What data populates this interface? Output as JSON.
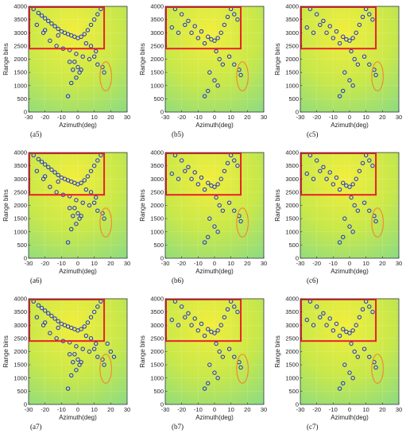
{
  "figure": {
    "panel_labels": [
      [
        "(a5)",
        "(b5)",
        "(c5)"
      ],
      [
        "(a6)",
        "(b6)",
        "(c6)"
      ],
      [
        "(a7)",
        "(b7)",
        "(c7)"
      ]
    ]
  },
  "colors": {
    "background_field": "#c8e84a",
    "background_hot": "#f2ee3c",
    "background_cool": "#8fdc80",
    "marker": "#1a2ed6",
    "roi_box": "#e8202a",
    "ellipse": "#f08a30"
  },
  "chart_data": [
    {
      "type": "scatter",
      "panel": "a5",
      "xlabel": "Azimuth(deg)",
      "ylabel": "Range bins",
      "xlim": [
        -30,
        30
      ],
      "ylim": [
        0,
        4000
      ],
      "xticks": [
        -30,
        -20,
        -10,
        0,
        10,
        20,
        30
      ],
      "yticks": [
        0,
        500,
        1000,
        1500,
        2000,
        2500,
        3000,
        3500,
        4000
      ],
      "roi_box": {
        "x": [
          -30,
          16
        ],
        "y": [
          2400,
          4200
        ]
      },
      "ellipse": {
        "cx": 17,
        "cy": 1350,
        "rx": 3.5,
        "ry": 550
      },
      "points": {
        "x": [
          -27,
          -24,
          -22,
          -20,
          -18,
          -16,
          -14,
          -12,
          -10,
          -8,
          -6,
          -4,
          -2,
          0,
          2,
          4,
          6,
          8,
          10,
          12,
          14,
          -25,
          -21,
          -17,
          -13,
          -9,
          -5,
          -1,
          3,
          7,
          11,
          -2,
          0,
          1,
          -1,
          2,
          -4,
          -6,
          10,
          12,
          15,
          16,
          -5,
          -3,
          5,
          8,
          -20,
          -12
        ],
        "y": [
          3900,
          3750,
          3650,
          3550,
          3450,
          3350,
          3250,
          3150,
          3050,
          3000,
          2950,
          2900,
          2850,
          2800,
          2850,
          2950,
          3100,
          3300,
          3500,
          3700,
          3900,
          3300,
          3000,
          2700,
          2500,
          2400,
          2350,
          2200,
          2100,
          2000,
          2300,
          1900,
          1700,
          1500,
          1300,
          1600,
          1100,
          600,
          2100,
          1800,
          1700,
          1500,
          1900,
          1600,
          2600,
          2500,
          3100,
          2900
        ]
      }
    },
    {
      "type": "scatter",
      "panel": "b5",
      "xlabel": "Azimuth(deg)",
      "ylabel": "Range bins",
      "xlim": [
        -30,
        30
      ],
      "ylim": [
        0,
        4000
      ],
      "xticks": [
        -30,
        -20,
        -10,
        0,
        10,
        20,
        30
      ],
      "yticks": [
        0,
        500,
        1000,
        1500,
        2000,
        2500,
        3000,
        3500,
        4000
      ],
      "roi_box": {
        "x": [
          -30,
          16
        ],
        "y": [
          2400,
          4200
        ]
      },
      "ellipse": {
        "cx": 17,
        "cy": 1350,
        "rx": 3.5,
        "ry": 550
      },
      "points": {
        "x": [
          -24,
          -20,
          -16,
          -12,
          -8,
          -4,
          -2,
          0,
          2,
          4,
          6,
          8,
          10,
          12,
          14,
          -18,
          -14,
          -10,
          -6,
          1,
          3,
          5,
          -3,
          0,
          2,
          -4,
          -6,
          9,
          12,
          15,
          16,
          -22,
          -26
        ],
        "y": [
          3900,
          3700,
          3450,
          3250,
          3050,
          2850,
          2750,
          2700,
          2800,
          3000,
          3300,
          3600,
          3900,
          3700,
          3500,
          3300,
          3000,
          2800,
          2600,
          2300,
          2000,
          1800,
          1500,
          1200,
          1000,
          800,
          600,
          2100,
          1800,
          1600,
          1400,
          3000,
          3200
        ]
      }
    },
    {
      "type": "scatter",
      "panel": "c5",
      "xlabel": "Azimuth(deg)",
      "ylabel": "Range bins",
      "xlim": [
        -30,
        30
      ],
      "ylim": [
        0,
        4000
      ],
      "xticks": [
        -30,
        -20,
        -10,
        0,
        10,
        20,
        30
      ],
      "yticks": [
        0,
        500,
        1000,
        1500,
        2000,
        2500,
        3000,
        3500,
        4000
      ],
      "roi_box": {
        "x": [
          -30,
          16
        ],
        "y": [
          2400,
          4200
        ]
      },
      "ellipse": {
        "cx": 17,
        "cy": 1350,
        "rx": 3.5,
        "ry": 550
      },
      "points": {
        "x": [
          -24,
          -20,
          -16,
          -12,
          -8,
          -4,
          -2,
          0,
          2,
          4,
          6,
          8,
          10,
          12,
          14,
          -18,
          -14,
          -10,
          -6,
          1,
          3,
          5,
          -3,
          0,
          2,
          -4,
          -6,
          9,
          12,
          15,
          16,
          -22,
          -26
        ],
        "y": [
          3900,
          3700,
          3450,
          3250,
          3050,
          2850,
          2750,
          2700,
          2800,
          3000,
          3300,
          3600,
          3900,
          3700,
          3500,
          3300,
          3000,
          2800,
          2600,
          2300,
          2000,
          1800,
          1500,
          1200,
          1000,
          800,
          600,
          2100,
          1800,
          1600,
          1400,
          3000,
          3200
        ]
      }
    },
    {
      "type": "scatter",
      "panel": "a6",
      "xlabel": "Azimuth(deg)",
      "ylabel": "Range bins",
      "xlim": [
        -30,
        30
      ],
      "ylim": [
        0,
        4000
      ],
      "xticks": [
        -30,
        -20,
        -10,
        0,
        10,
        20,
        30
      ],
      "yticks": [
        0,
        500,
        1000,
        1500,
        2000,
        2500,
        3000,
        3500,
        4000
      ],
      "roi_box": {
        "x": [
          -30,
          16
        ],
        "y": [
          2400,
          4200
        ]
      },
      "ellipse": {
        "cx": 17,
        "cy": 1350,
        "rx": 3.5,
        "ry": 550
      },
      "points": {
        "x": [
          -27,
          -24,
          -22,
          -20,
          -18,
          -16,
          -14,
          -12,
          -10,
          -8,
          -6,
          -4,
          -2,
          0,
          2,
          4,
          6,
          8,
          10,
          12,
          14,
          -25,
          -21,
          -17,
          -13,
          -9,
          -5,
          -1,
          3,
          7,
          11,
          -2,
          0,
          1,
          -1,
          2,
          -4,
          -6,
          10,
          12,
          15,
          16,
          -5,
          -3,
          5,
          8,
          -20,
          -12
        ],
        "y": [
          3900,
          3750,
          3650,
          3550,
          3450,
          3350,
          3250,
          3150,
          3050,
          3000,
          2950,
          2900,
          2850,
          2800,
          2850,
          2950,
          3100,
          3300,
          3500,
          3700,
          3900,
          3300,
          3000,
          2700,
          2500,
          2400,
          2350,
          2200,
          2100,
          2000,
          2300,
          1900,
          1700,
          1500,
          1300,
          1600,
          1100,
          600,
          2100,
          1800,
          1700,
          1500,
          1900,
          1600,
          2600,
          2500,
          3100,
          2900
        ]
      }
    },
    {
      "type": "scatter",
      "panel": "b6",
      "xlabel": "Azimuth(deg)",
      "ylabel": "Range bins",
      "xlim": [
        -30,
        30
      ],
      "ylim": [
        0,
        4000
      ],
      "xticks": [
        -30,
        -20,
        -10,
        0,
        10,
        20,
        30
      ],
      "yticks": [
        0,
        500,
        1000,
        1500,
        2000,
        2500,
        3000,
        3500,
        4000
      ],
      "roi_box": {
        "x": [
          -30,
          16
        ],
        "y": [
          2400,
          4200
        ]
      },
      "ellipse": {
        "cx": 17,
        "cy": 1350,
        "rx": 3.5,
        "ry": 550
      },
      "points": {
        "x": [
          -24,
          -20,
          -16,
          -12,
          -8,
          -4,
          -2,
          0,
          2,
          4,
          6,
          8,
          10,
          12,
          14,
          -18,
          -14,
          -10,
          -6,
          1,
          3,
          5,
          -3,
          0,
          2,
          -4,
          -6,
          9,
          12,
          15,
          16,
          -22,
          -26
        ],
        "y": [
          3900,
          3700,
          3450,
          3250,
          3050,
          2850,
          2750,
          2700,
          2800,
          3000,
          3300,
          3600,
          3900,
          3700,
          3500,
          3300,
          3000,
          2800,
          2600,
          2300,
          2000,
          1800,
          1500,
          1200,
          1000,
          800,
          600,
          2100,
          1800,
          1600,
          1400,
          3000,
          3200
        ]
      }
    },
    {
      "type": "scatter",
      "panel": "c6",
      "xlabel": "Azimuth(deg)",
      "ylabel": "Range bins",
      "xlim": [
        -30,
        30
      ],
      "ylim": [
        0,
        4000
      ],
      "xticks": [
        -30,
        -20,
        -10,
        0,
        10,
        20,
        30
      ],
      "yticks": [
        0,
        500,
        1000,
        1500,
        2000,
        2500,
        3000,
        3500,
        4000
      ],
      "roi_box": {
        "x": [
          -30,
          16
        ],
        "y": [
          2400,
          4200
        ]
      },
      "ellipse": {
        "cx": 17,
        "cy": 1350,
        "rx": 3.5,
        "ry": 550
      },
      "points": {
        "x": [
          -24,
          -20,
          -16,
          -12,
          -8,
          -4,
          -2,
          0,
          2,
          4,
          6,
          8,
          10,
          12,
          14,
          -18,
          -14,
          -10,
          -6,
          1,
          3,
          5,
          -3,
          0,
          2,
          -4,
          -6,
          9,
          12,
          15,
          16,
          -22,
          -26
        ],
        "y": [
          3900,
          3700,
          3450,
          3250,
          3050,
          2850,
          2750,
          2700,
          2800,
          3000,
          3300,
          3600,
          3900,
          3700,
          3500,
          3300,
          3000,
          2800,
          2600,
          2300,
          2000,
          1800,
          1500,
          1200,
          1000,
          800,
          600,
          2100,
          1800,
          1600,
          1400,
          3000,
          3200
        ]
      }
    },
    {
      "type": "scatter",
      "panel": "a7",
      "xlabel": "Azimuth(deg)",
      "ylabel": "Range bins",
      "xlim": [
        -30,
        30
      ],
      "ylim": [
        0,
        4000
      ],
      "xticks": [
        -30,
        -20,
        -10,
        0,
        10,
        20,
        30
      ],
      "yticks": [
        0,
        500,
        1000,
        1500,
        2000,
        2500,
        3000,
        3500,
        4000
      ],
      "roi_box": {
        "x": [
          -30,
          16
        ],
        "y": [
          2400,
          4200
        ]
      },
      "ellipse": {
        "cx": 17,
        "cy": 1350,
        "rx": 3.5,
        "ry": 550
      },
      "points": {
        "x": [
          -27,
          -24,
          -22,
          -20,
          -18,
          -16,
          -14,
          -12,
          -10,
          -8,
          -6,
          -4,
          -2,
          0,
          2,
          4,
          6,
          8,
          10,
          12,
          14,
          -25,
          -21,
          -17,
          -13,
          -9,
          -5,
          -1,
          3,
          7,
          11,
          -2,
          0,
          1,
          -1,
          2,
          -4,
          -6,
          10,
          12,
          15,
          16,
          -5,
          -3,
          5,
          8,
          -20,
          -12,
          18,
          20,
          22
        ],
        "y": [
          3900,
          3750,
          3650,
          3550,
          3450,
          3350,
          3250,
          3150,
          3050,
          3000,
          2950,
          2900,
          2850,
          2800,
          2850,
          2950,
          3100,
          3300,
          3500,
          3700,
          3900,
          3300,
          3000,
          2700,
          2500,
          2400,
          2350,
          2200,
          2100,
          2000,
          2300,
          1900,
          1700,
          1500,
          1300,
          1600,
          1100,
          600,
          2100,
          1800,
          1700,
          1500,
          1900,
          1600,
          2600,
          2500,
          3100,
          2900,
          2300,
          2000,
          1800
        ]
      }
    },
    {
      "type": "scatter",
      "panel": "b7",
      "xlabel": "Azimuth(deg)",
      "ylabel": "Range bins",
      "xlim": [
        -30,
        30
      ],
      "ylim": [
        0,
        4000
      ],
      "xticks": [
        -30,
        -20,
        -10,
        0,
        10,
        20,
        30
      ],
      "yticks": [
        0,
        500,
        1000,
        1500,
        2000,
        2500,
        3000,
        3500,
        4000
      ],
      "roi_box": {
        "x": [
          -30,
          16
        ],
        "y": [
          2400,
          4200
        ]
      },
      "ellipse": {
        "cx": 17,
        "cy": 1350,
        "rx": 3.5,
        "ry": 550
      },
      "points": {
        "x": [
          -24,
          -20,
          -16,
          -12,
          -8,
          -4,
          -2,
          0,
          2,
          4,
          6,
          8,
          10,
          12,
          14,
          -18,
          -14,
          -10,
          -6,
          1,
          3,
          5,
          -3,
          0,
          2,
          -4,
          -6,
          9,
          12,
          15,
          16,
          -22,
          -26
        ],
        "y": [
          3900,
          3700,
          3450,
          3250,
          3050,
          2850,
          2750,
          2700,
          2800,
          3000,
          3300,
          3600,
          3900,
          3700,
          3500,
          3300,
          3000,
          2800,
          2600,
          2300,
          2000,
          1800,
          1500,
          1200,
          1000,
          800,
          600,
          2100,
          1800,
          1600,
          1400,
          3000,
          3200
        ]
      }
    },
    {
      "type": "scatter",
      "panel": "c7",
      "xlabel": "Azimuth(deg)",
      "ylabel": "Range bins",
      "xlim": [
        -30,
        30
      ],
      "ylim": [
        0,
        4000
      ],
      "xticks": [
        -30,
        -20,
        -10,
        0,
        10,
        20,
        30
      ],
      "yticks": [
        0,
        500,
        1000,
        1500,
        2000,
        2500,
        3000,
        3500,
        4000
      ],
      "roi_box": {
        "x": [
          -30,
          16
        ],
        "y": [
          2400,
          4200
        ]
      },
      "ellipse": {
        "cx": 17,
        "cy": 1350,
        "rx": 3.5,
        "ry": 550
      },
      "points": {
        "x": [
          -24,
          -20,
          -16,
          -12,
          -8,
          -4,
          -2,
          0,
          2,
          4,
          6,
          8,
          10,
          12,
          14,
          -18,
          -14,
          -10,
          -6,
          1,
          3,
          5,
          -3,
          0,
          2,
          -4,
          -6,
          9,
          12,
          15,
          16,
          -22,
          -26
        ],
        "y": [
          3900,
          3700,
          3450,
          3250,
          3050,
          2850,
          2750,
          2700,
          2800,
          3000,
          3300,
          3600,
          3900,
          3700,
          3500,
          3300,
          3000,
          2800,
          2600,
          2300,
          2000,
          1800,
          1500,
          1200,
          1000,
          800,
          600,
          2100,
          1800,
          1600,
          1400,
          3000,
          3200
        ]
      }
    }
  ]
}
